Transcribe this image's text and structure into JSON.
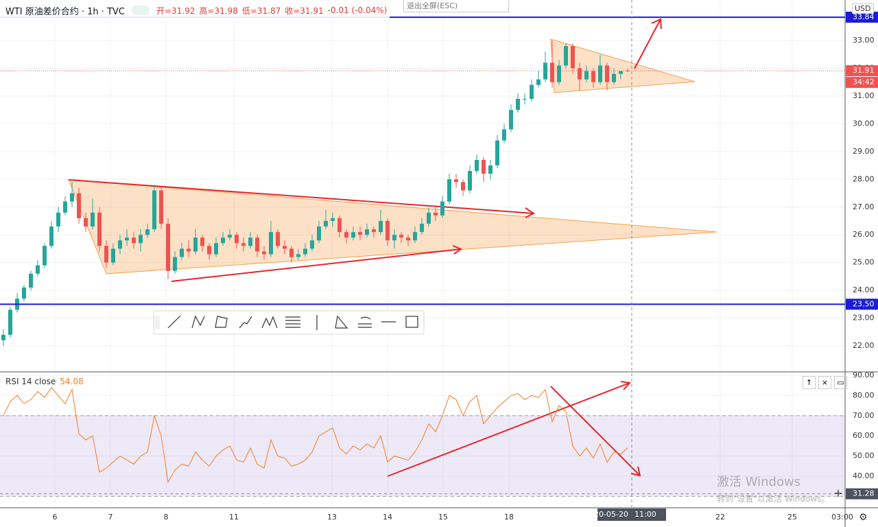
{
  "chart_data": [
    {
      "type": "candlestick",
      "title": "WTI 原油差价合约 · 1h · TVC",
      "ohlc_labels": [
        "开=31.92",
        "高=31.98",
        "低=31.87",
        "收=31.91",
        "-0.01 (-0.04%)"
      ],
      "exit_fullscreen": "退出全屏(ESC)",
      "currency": "USD",
      "up_color": "#26a69a",
      "down_color": "#ef5350",
      "open": [
        22.2,
        22.4,
        23.3,
        23.7,
        24.1,
        24.6,
        24.9,
        25.6,
        26.3,
        26.8,
        27.2,
        27.5,
        26.6,
        26.3,
        26.8,
        25.6,
        25.0,
        25.5,
        25.8,
        25.9,
        25.7,
        26.0,
        26.2,
        27.6,
        26.4,
        24.7,
        25.2,
        25.5,
        25.4,
        25.9,
        25.6,
        25.3,
        25.7,
        25.9,
        26.0,
        25.7,
        25.6,
        25.9,
        25.4,
        25.3,
        26.1,
        25.6,
        25.5,
        25.2,
        25.3,
        25.5,
        25.8,
        26.3,
        26.5,
        26.6,
        26.1,
        25.9,
        26.1,
        26.0,
        26.2,
        26.1,
        26.5,
        25.8,
        26.0,
        25.9,
        25.8,
        26.1,
        26.4,
        26.8,
        26.7,
        27.2,
        28.0,
        27.9,
        27.6,
        28.3,
        28.7,
        28.2,
        28.5,
        29.4,
        29.8,
        30.5,
        30.9,
        30.9,
        31.4,
        31.6,
        32.2,
        31.5,
        32.1,
        32.8,
        32.0,
        31.6,
        31.9,
        31.5,
        32.1,
        31.5,
        31.8,
        31.92
      ],
      "high": [
        22.6,
        23.4,
        23.9,
        24.2,
        24.7,
        25.1,
        25.7,
        26.5,
        27.0,
        27.4,
        27.9,
        27.7,
        26.8,
        27.3,
        27.0,
        25.8,
        25.7,
        26.0,
        26.2,
        26.1,
        26.2,
        26.4,
        27.8,
        27.7,
        26.6,
        25.4,
        25.7,
        25.8,
        26.2,
        26.0,
        25.7,
        25.9,
        26.1,
        26.2,
        26.1,
        25.9,
        26.1,
        26.0,
        25.6,
        26.5,
        26.2,
        25.8,
        25.6,
        25.5,
        25.7,
        26.0,
        26.5,
        26.9,
        26.8,
        26.7,
        26.2,
        26.3,
        26.3,
        26.4,
        26.3,
        26.9,
        26.6,
        26.2,
        26.1,
        26.0,
        26.3,
        26.6,
        27.0,
        27.0,
        27.4,
        28.2,
        28.2,
        28.0,
        28.5,
        28.9,
        28.8,
        28.7,
        29.6,
        30.0,
        30.7,
        31.1,
        31.1,
        31.6,
        31.9,
        32.6,
        33.0,
        32.3,
        32.9,
        32.9,
        32.2,
        32.1,
        32.0,
        32.5,
        32.2,
        32.0,
        31.9,
        31.98
      ],
      "low": [
        22.0,
        22.3,
        23.2,
        23.6,
        24.0,
        24.5,
        24.8,
        25.5,
        26.1,
        26.7,
        27.0,
        26.4,
        26.1,
        26.2,
        25.4,
        24.8,
        24.9,
        25.3,
        25.6,
        25.5,
        25.4,
        25.9,
        26.1,
        26.2,
        24.4,
        24.6,
        25.1,
        25.2,
        25.3,
        25.4,
        25.1,
        25.2,
        25.6,
        25.8,
        25.5,
        25.4,
        25.5,
        25.2,
        25.1,
        25.2,
        25.5,
        25.3,
        25.0,
        25.1,
        25.2,
        25.4,
        25.7,
        26.2,
        26.3,
        25.9,
        25.7,
        25.8,
        25.8,
        25.9,
        25.9,
        26.0,
        25.6,
        25.5,
        25.7,
        25.6,
        25.7,
        26.0,
        26.3,
        26.5,
        26.6,
        27.1,
        27.7,
        27.4,
        27.5,
        28.2,
        27.9,
        28.0,
        28.4,
        29.3,
        29.7,
        30.4,
        30.7,
        30.8,
        31.3,
        31.5,
        31.3,
        31.4,
        32.0,
        31.8,
        31.2,
        31.5,
        31.3,
        31.4,
        31.2,
        31.4,
        31.6,
        31.87
      ],
      "close": [
        22.4,
        23.3,
        23.7,
        24.1,
        24.6,
        24.9,
        25.6,
        26.3,
        26.8,
        27.2,
        27.5,
        26.6,
        26.3,
        26.8,
        25.6,
        25.0,
        25.5,
        25.8,
        25.9,
        25.7,
        26.0,
        26.2,
        27.6,
        26.4,
        24.7,
        25.2,
        25.5,
        25.4,
        25.9,
        25.6,
        25.3,
        25.7,
        25.9,
        26.0,
        25.7,
        25.6,
        25.9,
        25.4,
        25.3,
        26.1,
        25.6,
        25.5,
        25.2,
        25.3,
        25.5,
        25.8,
        26.3,
        26.5,
        26.6,
        26.1,
        25.9,
        26.1,
        26.0,
        26.2,
        26.1,
        26.5,
        25.8,
        26.0,
        25.9,
        25.8,
        26.1,
        26.4,
        26.8,
        26.7,
        27.2,
        28.0,
        27.9,
        27.6,
        28.3,
        28.7,
        28.2,
        28.5,
        29.4,
        29.8,
        30.5,
        30.9,
        30.9,
        31.4,
        31.6,
        32.2,
        31.5,
        32.1,
        32.8,
        32.0,
        31.6,
        31.9,
        31.5,
        32.1,
        31.5,
        31.8,
        31.9,
        31.91
      ],
      "xlim": [
        -0.5,
        122.7
      ],
      "xticks": [
        {
          "value": 7.5,
          "label": "6"
        },
        {
          "value": 15.6,
          "label": "7"
        },
        {
          "value": 23.7,
          "label": "8"
        },
        {
          "value": 33.6,
          "label": "11"
        },
        {
          "value": 47.9,
          "label": "13"
        },
        {
          "value": 56,
          "label": "14"
        },
        {
          "value": 64.1,
          "label": "15"
        },
        {
          "value": 73.7,
          "label": "18"
        },
        {
          "value": 104.5,
          "label": "22"
        },
        {
          "value": 115,
          "label": "25"
        },
        {
          "value": 122.3,
          "label": "03:00"
        }
      ],
      "ylim": [
        21.11,
        34.46
      ],
      "yticks": [
        {
          "value": 22,
          "label": "22.00"
        },
        {
          "value": 23,
          "label": "23.00"
        },
        {
          "value": 24,
          "label": "24.00"
        },
        {
          "value": 25,
          "label": "25.00"
        },
        {
          "value": 26,
          "label": "26.00"
        },
        {
          "value": 27,
          "label": "27.00"
        },
        {
          "value": 28,
          "label": "28.00"
        },
        {
          "value": 29,
          "label": "29.00"
        },
        {
          "value": 30,
          "label": "30.00"
        },
        {
          "value": 31,
          "label": "31.00"
        },
        {
          "value": 32,
          "label": "32.00"
        },
        {
          "value": 33,
          "label": "33.00"
        }
      ],
      "hlines": [
        {
          "value": 33.84,
          "label": "33.84",
          "color": "#1c1cd6"
        },
        {
          "value": 23.5,
          "label": "23.50",
          "color": "#1c1cd6"
        }
      ],
      "last_price": {
        "value": 31.91,
        "label": "31.91",
        "color": "#ef5350"
      },
      "countdown": "34:42",
      "crosshair": {
        "x": 91.6,
        "date": "2020-05-20",
        "time": "11:00"
      },
      "grid": true
    },
    {
      "type": "line",
      "title": "RSI 14 close",
      "value_label": "54.08",
      "color": "#f57c1f",
      "values": [
        70,
        77,
        80,
        76,
        78,
        82,
        79,
        84,
        80,
        76,
        83,
        61,
        58,
        60,
        42,
        44,
        47,
        50,
        48,
        46,
        50,
        52,
        70,
        60,
        37,
        43,
        46,
        45,
        52,
        48,
        45,
        50,
        53,
        55,
        48,
        47,
        54,
        46,
        44,
        58,
        50,
        49,
        45,
        46,
        48,
        52,
        60,
        62,
        64,
        54,
        51,
        55,
        53,
        56,
        54,
        60,
        47,
        50,
        49,
        48,
        52,
        58,
        66,
        62,
        70,
        80,
        78,
        70,
        77,
        80,
        66,
        70,
        74,
        77,
        80,
        81,
        78,
        80,
        79,
        83,
        67,
        75,
        72,
        55,
        50,
        54,
        49,
        56,
        47,
        52,
        51,
        54.08
      ],
      "ylim": [
        24.35,
        91.36
      ],
      "yticks": [
        {
          "value": 40,
          "label": "40.00"
        },
        {
          "value": 50,
          "label": "50.00"
        },
        {
          "value": 60,
          "label": "60.00"
        },
        {
          "value": 70,
          "label": "70.00"
        },
        {
          "value": 80,
          "label": "80.00"
        },
        {
          "value": 90,
          "label": "90.00"
        }
      ],
      "bands": [
        30,
        70
      ],
      "band_color": "#7e57c2",
      "crosshair_value": {
        "value": 31.28,
        "label": "31.28"
      }
    }
  ],
  "watermark": {
    "title": "激活 Windows",
    "subtitle": "转到\"设置\"以激活 Windows。"
  }
}
